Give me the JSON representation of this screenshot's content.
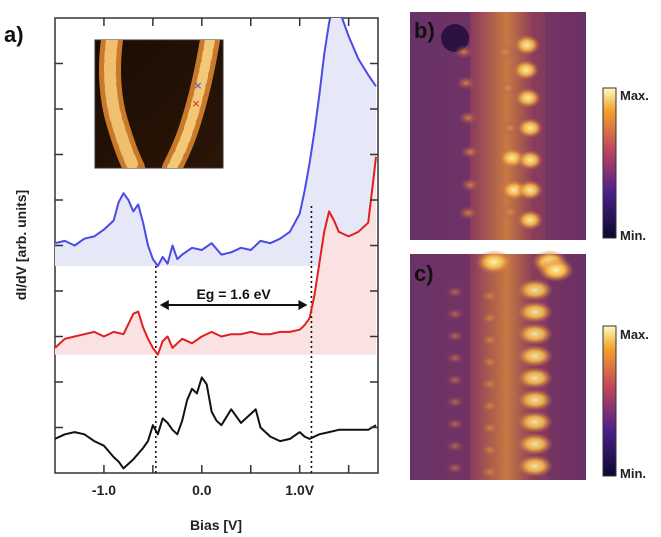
{
  "figure": {
    "panel_labels": [
      "a)",
      "b)",
      "c)"
    ],
    "colorbar_b": {
      "max_label": "Max.",
      "min_label": "Min."
    },
    "colorbar_c": {
      "max_label": "Max.",
      "min_label": "Min."
    },
    "annotation": "Eg = 1.6 eV",
    "colors": {
      "blue": "#4a4ae8",
      "red": "#e02020",
      "black": "#111111",
      "blue_fill": "#e6e8f8",
      "red_fill": "#fbe2e2",
      "frame": "#333333"
    }
  },
  "chart_data": {
    "type": "line",
    "title": "",
    "xlabel": "Bias [V]",
    "ylabel": "dI/dV [arb. units]",
    "xlim": [
      -1.5,
      1.8
    ],
    "x_ticks": [
      -1.0,
      -0.5,
      0.0,
      0.5,
      1.0,
      1.5
    ],
    "x_tick_labels": [
      "-1.0",
      "",
      "0.0",
      "",
      "1.0V",
      ""
    ],
    "ylim": [
      0,
      10
    ],
    "y_ticks": [
      1,
      2,
      3,
      4,
      5,
      6,
      7,
      8,
      9,
      10
    ],
    "y_tick_labels": false,
    "dashed_lines_x": [
      -0.47,
      1.12
    ],
    "gap_arrow": {
      "from": -0.47,
      "to": 1.12,
      "label": "Eg = 1.6 eV"
    },
    "series": [
      {
        "color_key": "blue",
        "fill_baseline": 4.55,
        "x": [
          -1.5,
          -1.4,
          -1.3,
          -1.2,
          -1.1,
          -1.0,
          -0.9,
          -0.85,
          -0.8,
          -0.75,
          -0.7,
          -0.65,
          -0.6,
          -0.55,
          -0.5,
          -0.45,
          -0.4,
          -0.35,
          -0.3,
          -0.25,
          -0.2,
          -0.1,
          0.0,
          0.1,
          0.2,
          0.3,
          0.4,
          0.5,
          0.6,
          0.7,
          0.8,
          0.9,
          1.0,
          1.05,
          1.1,
          1.15,
          1.2,
          1.25,
          1.3,
          1.35,
          1.4,
          1.5,
          1.6,
          1.7,
          1.78
        ],
        "y": [
          5.05,
          5.1,
          5.0,
          5.15,
          5.2,
          5.35,
          5.55,
          5.95,
          6.15,
          6.0,
          5.75,
          5.9,
          5.5,
          5.0,
          4.7,
          4.55,
          4.75,
          4.6,
          5.0,
          4.7,
          4.8,
          4.95,
          4.9,
          5.05,
          4.8,
          4.85,
          4.95,
          4.9,
          5.1,
          5.05,
          5.15,
          5.3,
          5.7,
          6.2,
          6.8,
          7.5,
          8.3,
          9.2,
          9.9,
          10.35,
          10.2,
          9.6,
          9.1,
          8.75,
          8.5
        ]
      },
      {
        "color_key": "red",
        "fill_baseline": 2.6,
        "x": [
          -1.5,
          -1.4,
          -1.3,
          -1.2,
          -1.1,
          -1.0,
          -0.9,
          -0.8,
          -0.7,
          -0.65,
          -0.6,
          -0.55,
          -0.5,
          -0.45,
          -0.4,
          -0.35,
          -0.3,
          -0.25,
          -0.2,
          -0.1,
          0.0,
          0.1,
          0.2,
          0.3,
          0.4,
          0.5,
          0.6,
          0.7,
          0.8,
          0.9,
          1.0,
          1.05,
          1.1,
          1.15,
          1.2,
          1.25,
          1.3,
          1.35,
          1.4,
          1.45,
          1.5,
          1.6,
          1.7,
          1.75,
          1.78
        ],
        "y": [
          2.75,
          2.95,
          3.0,
          3.05,
          3.1,
          3.0,
          3.1,
          3.05,
          3.5,
          3.55,
          3.2,
          2.95,
          2.75,
          2.6,
          2.9,
          3.0,
          2.75,
          2.85,
          2.95,
          2.85,
          3.0,
          3.1,
          3.0,
          3.05,
          3.05,
          3.1,
          3.05,
          3.05,
          3.1,
          3.1,
          3.15,
          3.25,
          3.4,
          3.9,
          4.6,
          5.3,
          5.75,
          5.55,
          5.3,
          5.25,
          5.2,
          5.3,
          5.5,
          6.4,
          6.95
        ]
      },
      {
        "color_key": "black",
        "fill_baseline": null,
        "x": [
          -1.5,
          -1.4,
          -1.3,
          -1.2,
          -1.1,
          -1.0,
          -0.9,
          -0.85,
          -0.8,
          -0.75,
          -0.7,
          -0.6,
          -0.55,
          -0.5,
          -0.45,
          -0.4,
          -0.35,
          -0.3,
          -0.25,
          -0.2,
          -0.15,
          -0.1,
          -0.05,
          0.0,
          0.05,
          0.1,
          0.15,
          0.2,
          0.3,
          0.4,
          0.5,
          0.55,
          0.6,
          0.7,
          0.8,
          0.9,
          1.0,
          1.05,
          1.1,
          1.2,
          1.3,
          1.4,
          1.5,
          1.6,
          1.7,
          1.78
        ],
        "y": [
          0.75,
          0.85,
          0.9,
          0.85,
          0.7,
          0.6,
          0.35,
          0.25,
          0.1,
          0.2,
          0.3,
          0.55,
          0.7,
          1.05,
          0.85,
          1.2,
          1.1,
          0.95,
          0.85,
          1.15,
          1.6,
          1.85,
          1.75,
          2.1,
          1.95,
          1.35,
          1.15,
          1.05,
          1.4,
          1.1,
          1.3,
          1.4,
          1.0,
          0.8,
          0.7,
          0.75,
          0.9,
          0.8,
          0.75,
          0.85,
          0.9,
          0.95,
          0.95,
          0.95,
          0.95,
          1.05
        ]
      }
    ]
  }
}
